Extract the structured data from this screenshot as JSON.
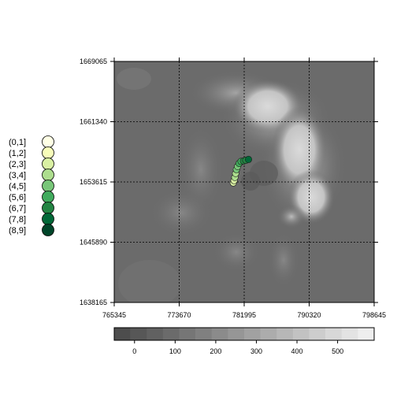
{
  "chart_data": {
    "type": "heatmap",
    "title": "",
    "xlabel": "",
    "ylabel": "",
    "x_ticks": [
      765345,
      773670,
      781995,
      790320,
      798645
    ],
    "y_ticks": [
      1638165,
      1645890,
      1653615,
      1661340,
      1669065
    ],
    "xlim": [
      765345,
      798645
    ],
    "ylim": [
      1638165,
      1669065
    ],
    "grid": true,
    "colorbar": {
      "position": "bottom",
      "range": [
        -50,
        590
      ],
      "ticks": [
        0,
        100,
        200,
        300,
        400,
        500
      ],
      "colors": [
        "#4d4d4d",
        "#575757",
        "#616161",
        "#6b6b6b",
        "#767676",
        "#808080",
        "#8b8b8b",
        "#969696",
        "#a1a1a1",
        "#acacac",
        "#b7b7b7",
        "#c2c2c2",
        "#cdcdcd",
        "#d8d8d8",
        "#e3e3e3",
        "#eeeeee"
      ]
    },
    "point_legend": {
      "position": "left",
      "classes": [
        "(0,1]",
        "(1,2]",
        "(2,3]",
        "(3,4]",
        "(4,5]",
        "(5,6]",
        "(6,7]",
        "(7,8]",
        "(8,9]"
      ],
      "colors": [
        "#ffffe5",
        "#f7fcb9",
        "#d9f0a3",
        "#addd8e",
        "#78c679",
        "#41ab5d",
        "#238443",
        "#006837",
        "#004529"
      ]
    },
    "points": [
      {
        "x": 780600,
        "y": 1653500,
        "class": 2
      },
      {
        "x": 780700,
        "y": 1653800,
        "class": 2
      },
      {
        "x": 780800,
        "y": 1654200,
        "class": 3
      },
      {
        "x": 780900,
        "y": 1654700,
        "class": 3
      },
      {
        "x": 781000,
        "y": 1655200,
        "class": 4
      },
      {
        "x": 781150,
        "y": 1655600,
        "class": 4
      },
      {
        "x": 781350,
        "y": 1656000,
        "class": 5
      },
      {
        "x": 781600,
        "y": 1656250,
        "class": 5
      },
      {
        "x": 781900,
        "y": 1656300,
        "class": 6
      },
      {
        "x": 782200,
        "y": 1656400,
        "class": 6
      },
      {
        "x": 782550,
        "y": 1656500,
        "class": 7
      }
    ]
  }
}
